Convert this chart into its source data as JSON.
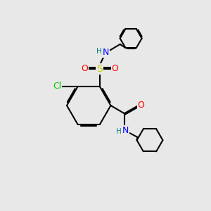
{
  "background_color": "#e8e8e8",
  "bond_color": "#000000",
  "bond_width": 1.5,
  "atom_colors": {
    "C": "#000000",
    "H": "#008080",
    "N": "#0000ff",
    "O": "#ff0000",
    "S": "#cccc00",
    "Cl": "#00cc00"
  },
  "font_size_atoms": 9,
  "font_size_small": 7.5
}
